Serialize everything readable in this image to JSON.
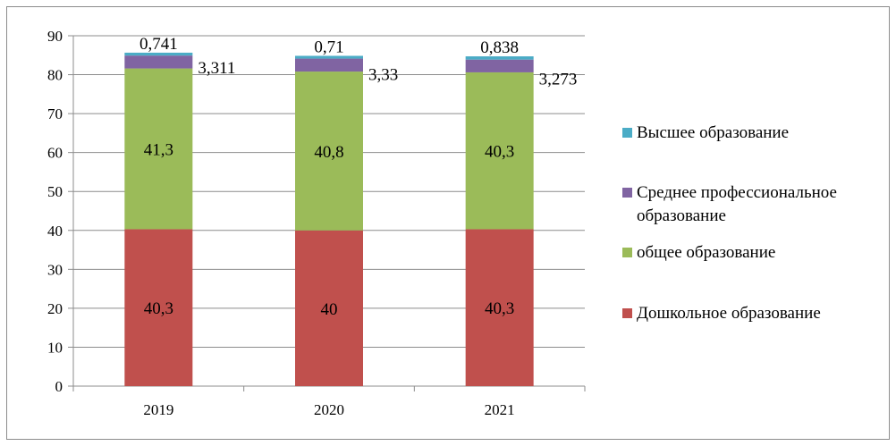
{
  "chart_data": {
    "type": "bar",
    "stacked": true,
    "categories": [
      "2019",
      "2020",
      "2021"
    ],
    "series": [
      {
        "name": "Дошкольное образование",
        "values": [
          40.3,
          40,
          40.3
        ],
        "labels": [
          "40,3",
          "40",
          "40,3"
        ],
        "color": "#c0504d"
      },
      {
        "name": "общее образование",
        "values": [
          41.3,
          40.8,
          40.3
        ],
        "labels": [
          "41,3",
          "40,8",
          "40,3"
        ],
        "color": "#9bbb59"
      },
      {
        "name": "Среднее профессиональное образование",
        "values": [
          3.311,
          3.33,
          3.273
        ],
        "labels": [
          "3,311",
          "3,33",
          "3,273"
        ],
        "color": "#8064a2"
      },
      {
        "name": "Высшее образование",
        "values": [
          0.741,
          0.71,
          0.838
        ],
        "labels": [
          "0,741",
          "0,71",
          "0,838"
        ],
        "color": "#4bacc6"
      }
    ],
    "yticks": [
      "0",
      "10",
      "20",
      "30",
      "40",
      "50",
      "60",
      "70",
      "80",
      "90"
    ],
    "ylim": [
      0,
      90
    ],
    "grid": true,
    "legend_position": "right"
  }
}
